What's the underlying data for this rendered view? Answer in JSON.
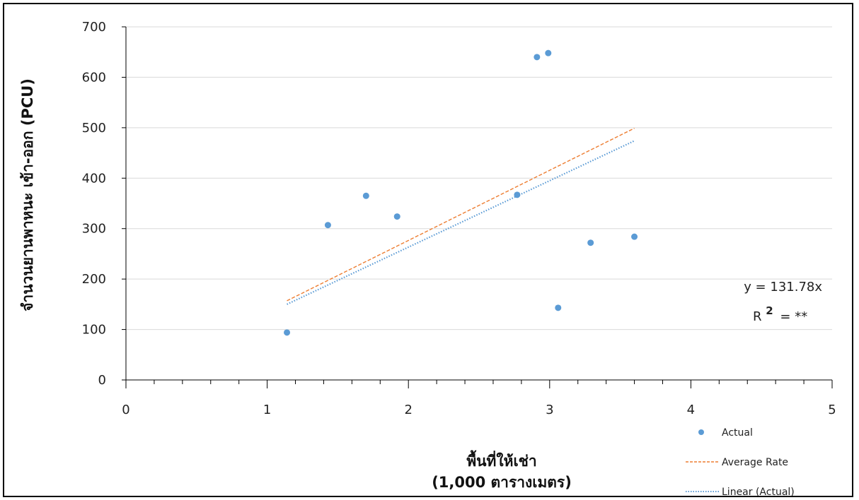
{
  "chart_data": {
    "type": "scatter",
    "xlabel": "พื้นที่ให้เช่า",
    "xlabel_unit": "(1,000 ตารางเมตร)",
    "ylabel": "จำนวนยานพาหนะ เข้า-ออก (PCU)",
    "xlim": [
      0,
      5
    ],
    "ylim": [
      0,
      700
    ],
    "x_ticks": [
      "0",
      "1",
      "2",
      "3",
      "4",
      "5"
    ],
    "y_ticks": [
      "0",
      "100",
      "200",
      "300",
      "400",
      "500",
      "600",
      "700"
    ],
    "grid": "horizontal",
    "legend_position": "bottom-right",
    "series": [
      {
        "name": "Actual",
        "kind": "points",
        "color": "#5b9bd5",
        "x": [
          1.14,
          1.43,
          1.7,
          1.92,
          2.77,
          2.91,
          2.99,
          3.06,
          3.29,
          3.6
        ],
        "y": [
          94,
          307,
          365,
          324,
          367,
          640,
          648,
          143,
          272,
          284
        ]
      },
      {
        "name": "Average Rate",
        "kind": "dashed-line",
        "color": "#ed7d31",
        "x": [
          1.14,
          3.6
        ],
        "y": [
          157,
          499
        ]
      },
      {
        "name": "Linear (Actual)",
        "kind": "dotted-line",
        "color": "#5b9bd5",
        "x": [
          1.14,
          3.6
        ],
        "y": [
          150,
          474
        ]
      }
    ],
    "annotations": {
      "equation": "y = 131.78x",
      "r2_label": "R",
      "r2_sup": "2",
      "r2_value": "= **"
    }
  }
}
